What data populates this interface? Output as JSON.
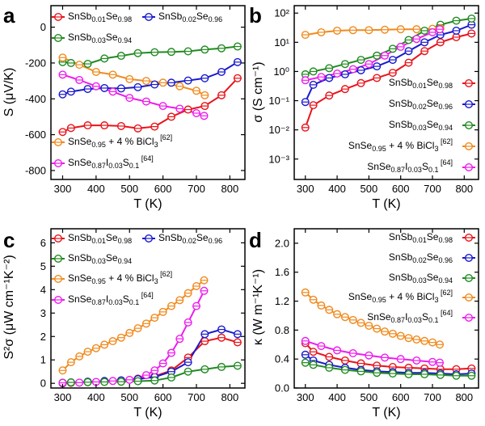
{
  "chart_data": [
    {
      "panel": "a",
      "type": "line",
      "xlabel": "T (K)",
      "ylabel": "S (μV/K)",
      "xlim": [
        265,
        845
      ],
      "ylim": [
        -850,
        120
      ],
      "yscale": "linear",
      "xticks": [
        300,
        400,
        500,
        600,
        700,
        800
      ],
      "yticks": [
        -800,
        -600,
        -400,
        -200,
        0
      ],
      "legend_columns": 2,
      "series": [
        {
          "name": "SnSb0.01Se0.98",
          "color": "#e8141b",
          "x": [
            300,
            325,
            375,
            425,
            475,
            525,
            575,
            625,
            675,
            725,
            775,
            823
          ],
          "y": [
            -585,
            -563,
            -548,
            -548,
            -552,
            -565,
            -555,
            -500,
            -460,
            -440,
            -380,
            -285
          ]
        },
        {
          "name": "SnSb0.02Se0.96",
          "color": "#1a1acd",
          "x": [
            300,
            325,
            375,
            425,
            475,
            525,
            575,
            625,
            675,
            725,
            775,
            823
          ],
          "y": [
            -375,
            -360,
            -345,
            -340,
            -342,
            -335,
            -320,
            -310,
            -298,
            -285,
            -250,
            -195
          ]
        },
        {
          "name": "SnSb0.03Se0.94",
          "color": "#218a21",
          "x": [
            300,
            325,
            375,
            425,
            475,
            525,
            575,
            625,
            675,
            725,
            775,
            823
          ],
          "y": [
            -195,
            -200,
            -205,
            -175,
            -160,
            -145,
            -140,
            -138,
            -135,
            -125,
            -118,
            -108
          ]
        },
        {
          "name": "SnSe0.95 + 4 % BiCl3 [62]",
          "color": "#f08a1d",
          "x": [
            300,
            350,
            400,
            450,
            500,
            550,
            600,
            650,
            700,
            725
          ],
          "y": [
            -170,
            -210,
            -250,
            -265,
            -290,
            -300,
            -310,
            -330,
            -355,
            -380
          ]
        },
        {
          "name": "SnSe0.87I0.03S0.1 [64]",
          "color": "#ee1ced",
          "x": [
            300,
            350,
            400,
            450,
            500,
            550,
            600,
            650,
            700,
            723
          ],
          "y": [
            -265,
            -295,
            -330,
            -360,
            -395,
            -415,
            -440,
            -455,
            -480,
            -495
          ]
        }
      ]
    },
    {
      "panel": "b",
      "type": "line",
      "xlabel": "T (K)",
      "ylabel": "σ (S cm⁻¹)",
      "xlim": [
        265,
        845
      ],
      "ylim": [
        0.0002,
        180
      ],
      "yscale": "log",
      "xticks": [
        300,
        400,
        500,
        600,
        700,
        800
      ],
      "yticks": [
        0.001,
        0.01,
        0.1,
        1,
        10,
        100
      ],
      "ytick_labels": [
        "10⁻³",
        "10⁻²",
        "10⁻¹",
        "10⁰",
        "10¹",
        "10²"
      ],
      "legend_columns": 1,
      "series": [
        {
          "name": "SnSb0.01Se0.98",
          "color": "#e8141b",
          "x": [
            300,
            325,
            375,
            425,
            475,
            525,
            575,
            625,
            675,
            725,
            775,
            823
          ],
          "y": [
            0.012,
            0.07,
            0.15,
            0.25,
            0.4,
            0.6,
            0.9,
            2.0,
            5.0,
            10,
            15,
            20
          ]
        },
        {
          "name": "SnSb0.02Se0.96",
          "color": "#1a1acd",
          "x": [
            300,
            325,
            375,
            425,
            475,
            525,
            575,
            625,
            675,
            725,
            775,
            823
          ],
          "y": [
            0.09,
            0.35,
            0.6,
            0.8,
            1.1,
            1.5,
            2.5,
            5.0,
            10,
            18,
            25,
            40
          ]
        },
        {
          "name": "SnSb0.03Se0.94",
          "color": "#218a21",
          "x": [
            300,
            325,
            375,
            425,
            475,
            525,
            575,
            625,
            675,
            725,
            775,
            823
          ],
          "y": [
            0.8,
            1.0,
            1.3,
            1.8,
            2.5,
            3.5,
            6.0,
            12,
            25,
            40,
            55,
            65
          ]
        },
        {
          "name": "SnSe0.95 + 4 % BiCl3 [62]",
          "color": "#f08a1d",
          "x": [
            300,
            350,
            400,
            450,
            500,
            550,
            600,
            650,
            700,
            725
          ],
          "y": [
            18,
            22,
            25,
            26,
            26,
            27,
            28,
            28,
            29,
            30
          ]
        },
        {
          "name": "SnSe0.87I0.03S0.1 [64]",
          "color": "#ee1ced",
          "x": [
            300,
            350,
            400,
            450,
            500,
            550,
            600,
            650,
            700,
            723
          ],
          "y": [
            0.5,
            0.65,
            0.85,
            1.2,
            1.8,
            3.5,
            7.0,
            13,
            22,
            28
          ]
        }
      ]
    },
    {
      "panel": "c",
      "type": "line",
      "xlabel": "T (K)",
      "ylabel": "S²σ (μW cm⁻¹K⁻²)",
      "xlim": [
        265,
        845
      ],
      "ylim": [
        -0.2,
        6.6
      ],
      "yscale": "linear",
      "xticks": [
        300,
        400,
        500,
        600,
        700,
        800
      ],
      "yticks": [
        0,
        1,
        2,
        3,
        4,
        5,
        6
      ],
      "legend_columns": 2,
      "series": [
        {
          "name": "SnSb0.01Se0.98",
          "color": "#e8141b",
          "x": [
            300,
            325,
            375,
            425,
            475,
            525,
            575,
            625,
            675,
            725,
            775,
            823
          ],
          "y": [
            0.0,
            0.02,
            0.05,
            0.08,
            0.12,
            0.2,
            0.3,
            0.55,
            1.1,
            1.8,
            1.95,
            1.75
          ]
        },
        {
          "name": "SnSb0.02Se0.96",
          "color": "#1a1acd",
          "x": [
            300,
            325,
            375,
            425,
            475,
            525,
            575,
            625,
            675,
            725,
            775,
            823
          ],
          "y": [
            0.01,
            0.04,
            0.07,
            0.1,
            0.13,
            0.18,
            0.27,
            0.5,
            0.9,
            2.1,
            2.3,
            2.1
          ]
        },
        {
          "name": "SnSb0.03Se0.94",
          "color": "#218a21",
          "x": [
            300,
            325,
            375,
            425,
            475,
            525,
            575,
            625,
            675,
            725,
            775,
            823
          ],
          "y": [
            0.03,
            0.04,
            0.05,
            0.06,
            0.07,
            0.09,
            0.12,
            0.25,
            0.5,
            0.6,
            0.7,
            0.75
          ]
        },
        {
          "name": "SnSe0.95 + 4 % BiCl3 [62]",
          "color": "#f08a1d",
          "x": [
            300,
            325,
            350,
            375,
            400,
            425,
            450,
            475,
            500,
            525,
            550,
            575,
            600,
            625,
            650,
            675,
            700,
            723
          ],
          "y": [
            0.55,
            0.9,
            1.15,
            1.35,
            1.5,
            1.65,
            1.8,
            1.95,
            2.15,
            2.35,
            2.55,
            2.8,
            3.05,
            3.3,
            3.55,
            3.85,
            4.15,
            4.4
          ]
        },
        {
          "name": "SnSe0.87I0.03S0.1 [64]",
          "color": "#ee1ced",
          "x": [
            300,
            350,
            400,
            450,
            500,
            550,
            575,
            600,
            625,
            650,
            675,
            700,
            723
          ],
          "y": [
            0.02,
            0.03,
            0.06,
            0.1,
            0.15,
            0.35,
            0.55,
            0.85,
            1.3,
            1.9,
            2.6,
            3.3,
            3.95
          ]
        }
      ]
    },
    {
      "panel": "d",
      "type": "line",
      "xlabel": "T (K)",
      "ylabel": "κ (W m⁻¹K⁻¹)",
      "xlim": [
        265,
        845
      ],
      "ylim": [
        0.0,
        2.2
      ],
      "yscale": "linear",
      "xticks": [
        300,
        400,
        500,
        600,
        700,
        800
      ],
      "yticks": [
        0.0,
        0.4,
        0.8,
        1.2,
        1.6,
        2.0
      ],
      "ytick_labels": [
        "0.0",
        "0.4",
        "0.8",
        "1.2",
        "1.6",
        "2.0"
      ],
      "legend_columns": 1,
      "series": [
        {
          "name": "SnSb0.01Se0.98",
          "color": "#e8141b",
          "x": [
            300,
            325,
            375,
            425,
            475,
            525,
            575,
            625,
            675,
            725,
            775,
            823
          ],
          "y": [
            0.62,
            0.5,
            0.43,
            0.38,
            0.34,
            0.31,
            0.29,
            0.28,
            0.27,
            0.26,
            0.26,
            0.27
          ]
        },
        {
          "name": "SnSb0.02Se0.96",
          "color": "#1a1acd",
          "x": [
            300,
            325,
            375,
            425,
            475,
            525,
            575,
            625,
            675,
            725,
            775,
            823
          ],
          "y": [
            0.46,
            0.38,
            0.32,
            0.28,
            0.25,
            0.23,
            0.22,
            0.21,
            0.21,
            0.2,
            0.19,
            0.2
          ]
        },
        {
          "name": "SnSb0.03Se0.94",
          "color": "#218a21",
          "x": [
            300,
            325,
            375,
            425,
            475,
            525,
            575,
            625,
            675,
            725,
            775,
            823
          ],
          "y": [
            0.35,
            0.32,
            0.28,
            0.25,
            0.23,
            0.21,
            0.2,
            0.19,
            0.19,
            0.18,
            0.17,
            0.17
          ]
        },
        {
          "name": "SnSe0.95 + 4 % BiCl3 [62]",
          "color": "#f08a1d",
          "x": [
            300,
            325,
            350,
            375,
            400,
            425,
            450,
            475,
            500,
            525,
            550,
            575,
            600,
            625,
            650,
            675,
            700,
            723
          ],
          "y": [
            1.32,
            1.22,
            1.14,
            1.08,
            1.02,
            0.98,
            0.94,
            0.9,
            0.86,
            0.82,
            0.78,
            0.75,
            0.72,
            0.69,
            0.67,
            0.65,
            0.63,
            0.6
          ]
        },
        {
          "name": "SnSe0.87I0.03S0.1 [64]",
          "color": "#ee1ced",
          "x": [
            300,
            350,
            400,
            450,
            500,
            550,
            600,
            650,
            700,
            723
          ],
          "y": [
            0.65,
            0.58,
            0.52,
            0.48,
            0.45,
            0.42,
            0.4,
            0.38,
            0.36,
            0.35
          ]
        }
      ]
    }
  ],
  "legend_labels": [
    {
      "base": "SnSb",
      "sub1": "0.01",
      "mid": "Se",
      "sub2": "0.98",
      "tail": "",
      "sub3": "",
      "ref": ""
    },
    {
      "base": "SnSb",
      "sub1": "0.02",
      "mid": "Se",
      "sub2": "0.96",
      "tail": "",
      "sub3": "",
      "ref": ""
    },
    {
      "base": "SnSb",
      "sub1": "0.03",
      "mid": "Se",
      "sub2": "0.94",
      "tail": "",
      "sub3": "",
      "ref": ""
    },
    {
      "base": "SnSe",
      "sub1": "0.95",
      "mid": " + 4 % BiCl",
      "sub2": "3",
      "tail": "",
      "sub3": "",
      "ref": "[62]"
    },
    {
      "base": "SnSe",
      "sub1": "0.87",
      "mid": "I",
      "sub2": "0.03",
      "tail": "S",
      "sub3": "0.1",
      "ref": "[64]"
    }
  ],
  "colors": {
    "frame": "#000000",
    "background": "#ffffff"
  }
}
